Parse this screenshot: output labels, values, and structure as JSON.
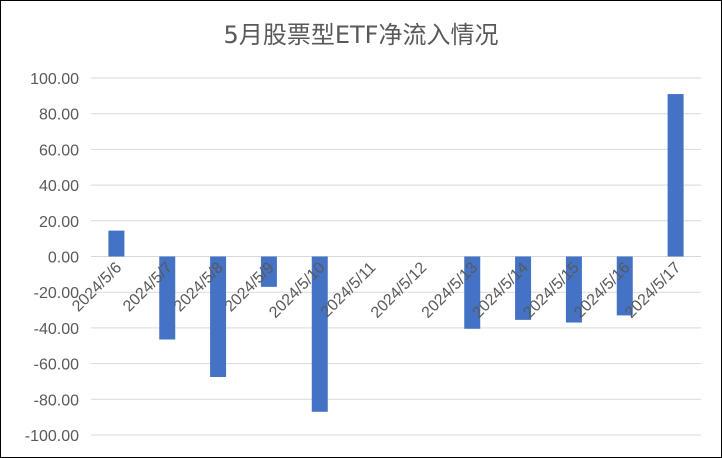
{
  "chart_data": {
    "type": "bar",
    "title": "5月股票型ETF净流入情况",
    "xlabel": "",
    "ylabel": "",
    "categories": [
      "2024/5/6",
      "2024/5/7",
      "2024/5/8",
      "2024/5/9",
      "2024/5/10",
      "2024/5/11",
      "2024/5/12",
      "2024/5/13",
      "2024/5/14",
      "2024/5/15",
      "2024/5/16",
      "2024/5/17"
    ],
    "values": [
      14.5,
      -46.5,
      -67.5,
      -17.0,
      -87.0,
      0,
      0,
      -40.5,
      -35.5,
      -37.0,
      -33.0,
      91.0
    ],
    "ylim": [
      -100,
      100
    ],
    "yticks": [
      "-100.00",
      "-80.00",
      "-60.00",
      "-40.00",
      "-20.00",
      "0.00",
      "20.00",
      "40.00",
      "60.00",
      "80.00",
      "100.00"
    ],
    "grid": true,
    "bar_color": "#4472C4",
    "grid_color": "#D9D9D9",
    "text_color": "#595959"
  }
}
